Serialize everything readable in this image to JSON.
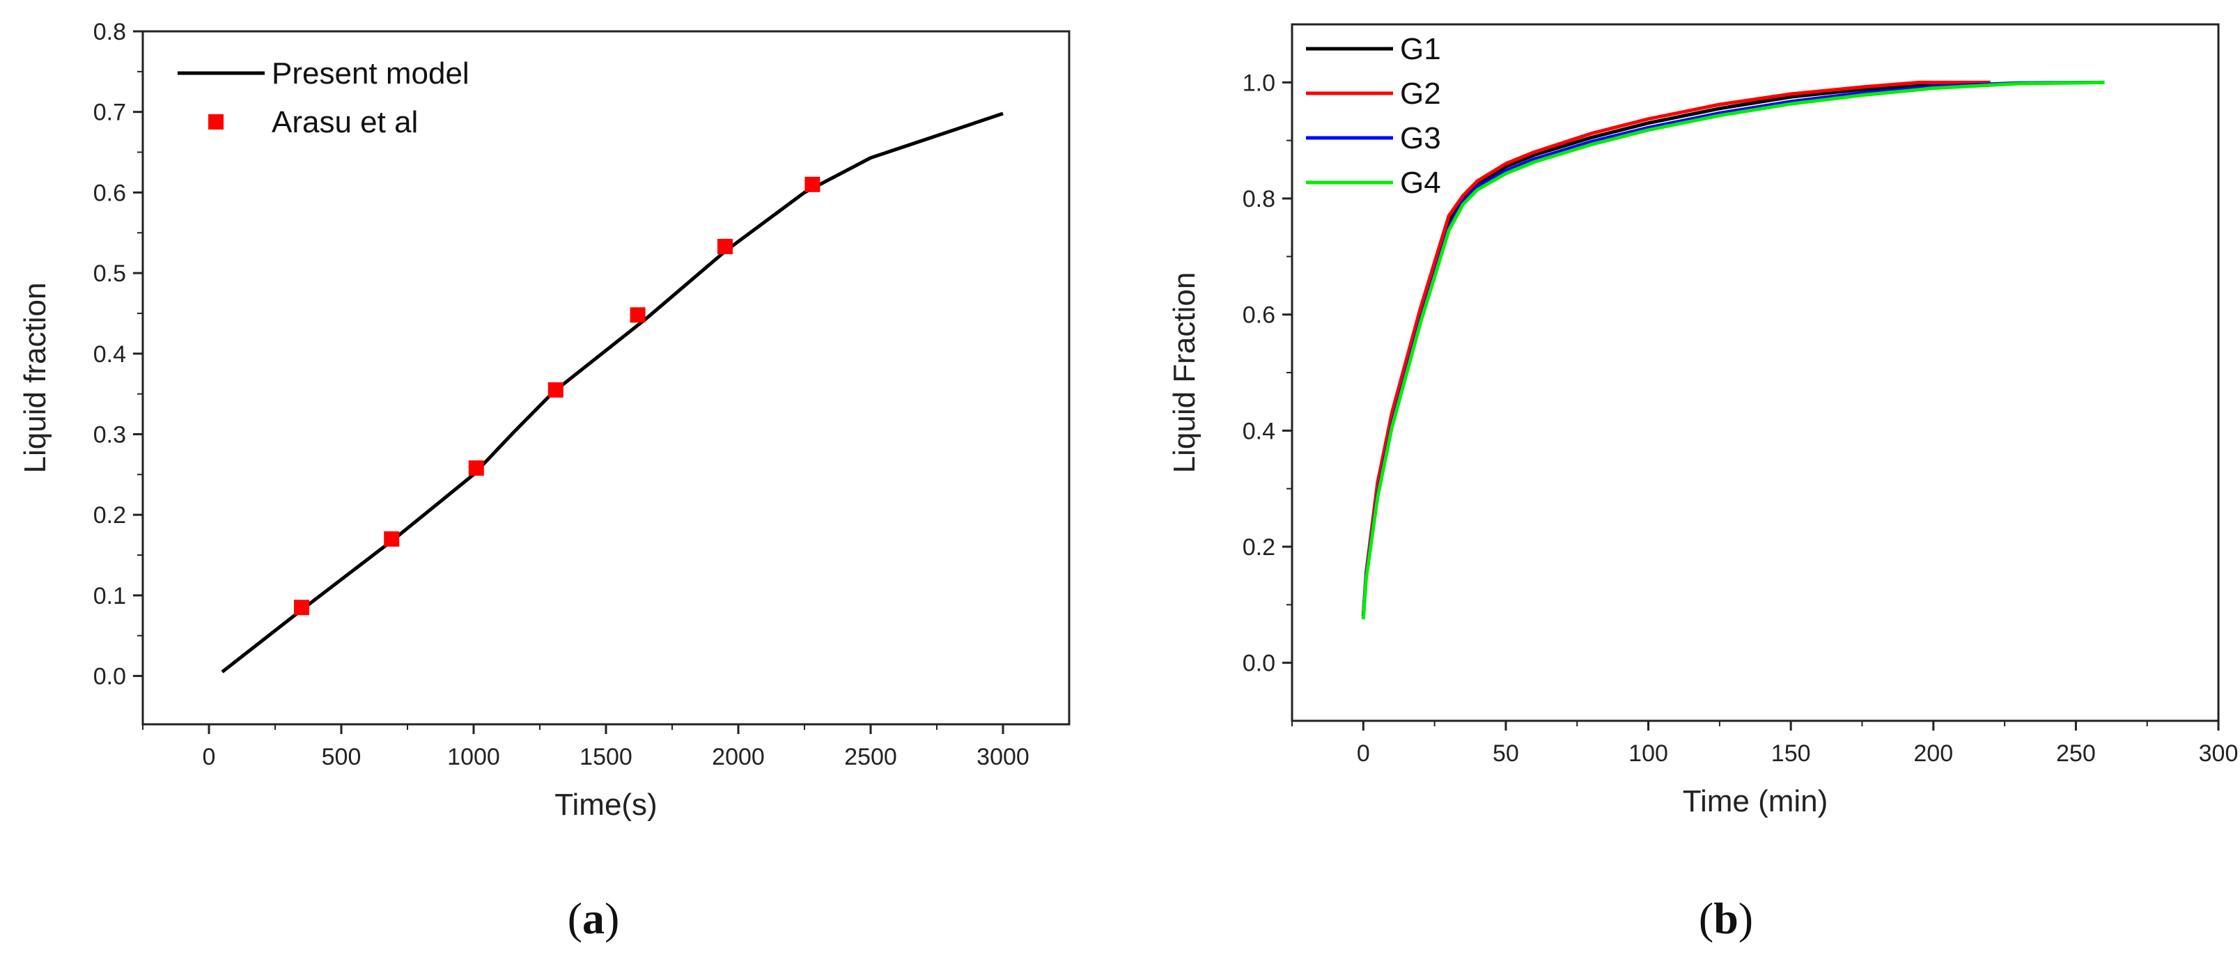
{
  "chart_data": [
    {
      "panel": "(a)",
      "caption": {
        "open": "(",
        "letter": "a",
        "close": ")"
      },
      "type": "line",
      "xlabel": "Time(s)",
      "ylabel": "Liquid fraction",
      "xlim": [
        -250,
        3250
      ],
      "ylim": [
        -0.06,
        0.8
      ],
      "xticks": [
        0,
        500,
        1000,
        1500,
        2000,
        2500,
        3000
      ],
      "xtick_labels": [
        "0",
        "500",
        "1000",
        "1500",
        "2000",
        "2500",
        "3000"
      ],
      "yticks": [
        0.0,
        0.1,
        0.2,
        0.3,
        0.4,
        0.5,
        0.6,
        0.7,
        0.8
      ],
      "ytick_labels": [
        "0.0",
        "0.1",
        "0.2",
        "0.3",
        "0.4",
        "0.5",
        "0.6",
        "0.7",
        "0.8"
      ],
      "grid": false,
      "legend_position": "top-left",
      "series": [
        {
          "name": "Present model",
          "kind": "line",
          "color": "#000000",
          "x": [
            50,
            350,
            700,
            1000,
            1150,
            1300,
            1650,
            1950,
            2250,
            2500,
            3000
          ],
          "y": [
            0.005,
            0.082,
            0.17,
            0.25,
            0.302,
            0.352,
            0.443,
            0.527,
            0.6,
            0.643,
            0.698
          ]
        },
        {
          "name": "Arasu et al",
          "kind": "scatter",
          "marker": "square",
          "color": "#ff0000",
          "x": [
            350,
            690,
            1010,
            1310,
            1620,
            1950,
            2280
          ],
          "y": [
            0.085,
            0.17,
            0.258,
            0.355,
            0.448,
            0.533,
            0.61
          ]
        }
      ]
    },
    {
      "panel": "(b)",
      "caption": {
        "open": "(",
        "letter": "b",
        "close": ")"
      },
      "type": "line",
      "xlabel": "Time (min)",
      "ylabel": "Liquid Fraction",
      "xlim": [
        -25,
        300
      ],
      "ylim": [
        -0.1,
        1.1
      ],
      "xticks": [
        0,
        50,
        100,
        150,
        200,
        250,
        300
      ],
      "xtick_labels": [
        "0",
        "50",
        "100",
        "150",
        "200",
        "250",
        "300"
      ],
      "yticks": [
        0.0,
        0.2,
        0.4,
        0.6,
        0.8,
        1.0
      ],
      "ytick_labels": [
        "0.0",
        "0.2",
        "0.4",
        "0.6",
        "0.8",
        "1.0"
      ],
      "grid": false,
      "legend_position": "top-left",
      "series": [
        {
          "name": "G1",
          "color": "#000000",
          "x": [
            0,
            1,
            5,
            10,
            20,
            30,
            35,
            40,
            50,
            60,
            80,
            100,
            125,
            150,
            175,
            200,
            220
          ],
          "y": [
            0.08,
            0.15,
            0.3,
            0.42,
            0.6,
            0.76,
            0.8,
            0.825,
            0.855,
            0.875,
            0.905,
            0.93,
            0.955,
            0.975,
            0.988,
            0.998,
            1.0
          ]
        },
        {
          "name": "G2",
          "color": "#ff0000",
          "x": [
            0,
            1,
            5,
            10,
            20,
            30,
            35,
            40,
            50,
            60,
            80,
            100,
            125,
            150,
            175,
            195,
            220
          ],
          "y": [
            0.08,
            0.155,
            0.31,
            0.43,
            0.61,
            0.77,
            0.805,
            0.83,
            0.86,
            0.88,
            0.912,
            0.937,
            0.962,
            0.98,
            0.992,
            1.0,
            1.0
          ]
        },
        {
          "name": "G3",
          "color": "#0000ff",
          "x": [
            0,
            1,
            5,
            10,
            20,
            30,
            35,
            40,
            50,
            60,
            80,
            100,
            125,
            150,
            175,
            200,
            230,
            260
          ],
          "y": [
            0.08,
            0.15,
            0.29,
            0.41,
            0.59,
            0.75,
            0.795,
            0.82,
            0.848,
            0.868,
            0.898,
            0.922,
            0.947,
            0.967,
            0.982,
            0.993,
            0.999,
            1.0
          ]
        },
        {
          "name": "G4",
          "color": "#00ee00",
          "x": [
            0,
            1,
            5,
            10,
            20,
            30,
            35,
            40,
            50,
            60,
            80,
            100,
            125,
            150,
            175,
            200,
            230,
            260
          ],
          "y": [
            0.075,
            0.145,
            0.285,
            0.405,
            0.585,
            0.745,
            0.79,
            0.815,
            0.843,
            0.863,
            0.893,
            0.918,
            0.943,
            0.963,
            0.978,
            0.99,
            0.998,
            1.0
          ]
        }
      ]
    }
  ]
}
